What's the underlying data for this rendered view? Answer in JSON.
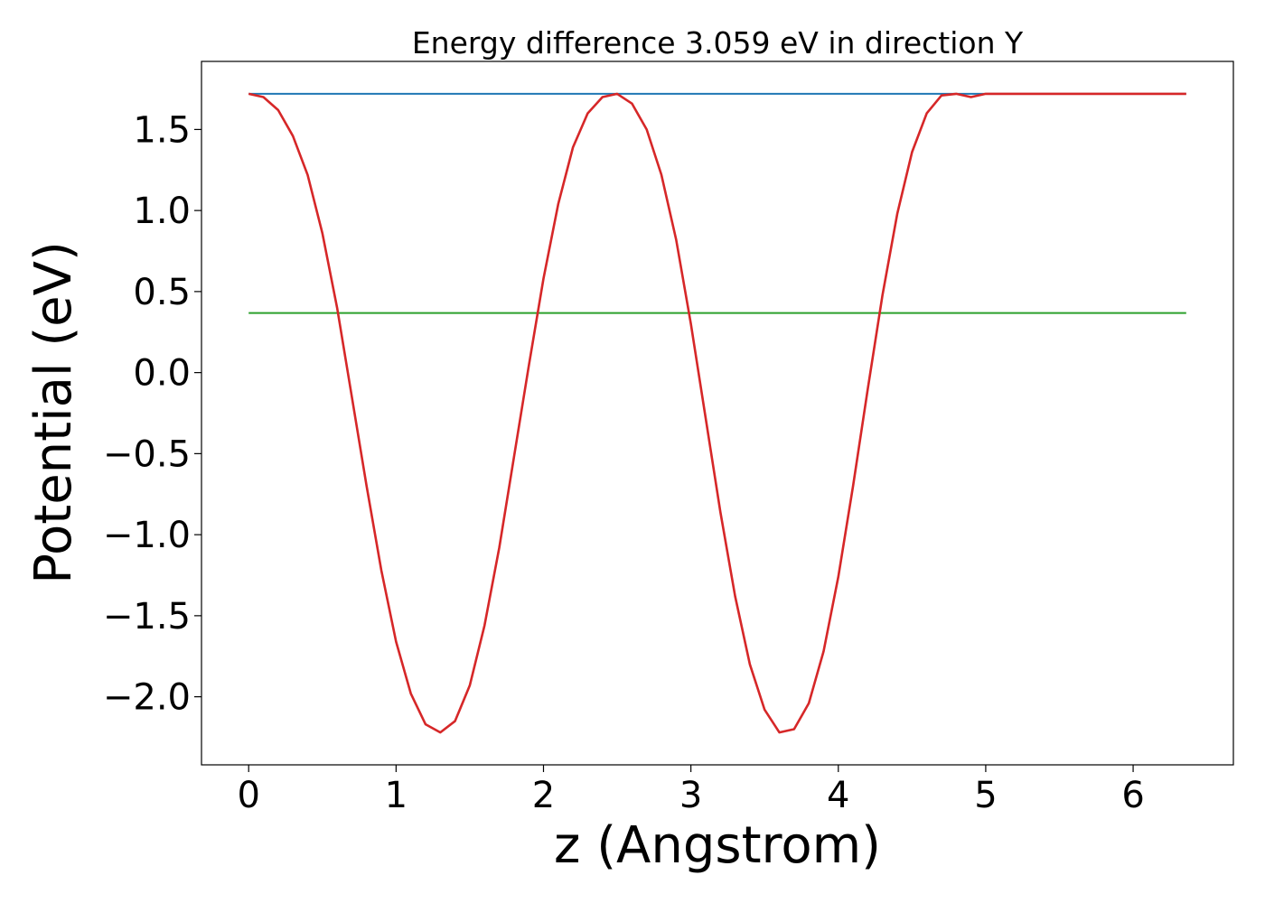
{
  "chart_data": {
    "type": "line",
    "title": "Energy difference 3.059 eV in direction Y",
    "xlabel": "z (Angstrom)",
    "ylabel": "Potential (eV)",
    "xlim": [
      -0.32,
      6.68
    ],
    "ylim": [
      -2.42,
      1.92
    ],
    "xticks": [
      0,
      1,
      2,
      3,
      4,
      5,
      6
    ],
    "yticks": [
      1.5,
      1.0,
      0.5,
      0.0,
      -0.5,
      -1.0,
      -1.5,
      -2.0
    ],
    "xtick_labels": [
      "0",
      "1",
      "2",
      "3",
      "4",
      "5",
      "6"
    ],
    "ytick_labels": [
      "1.5",
      "1.0",
      "0.5",
      "0.0",
      "−0.5",
      "−1.0",
      "−1.5",
      "−2.0"
    ],
    "grid": false,
    "colors": {
      "potential": "#d62728",
      "max_level": "#1f77b4",
      "avg_level": "#2ca02c"
    },
    "series": [
      {
        "values_note": "",
        "x": [
          0.0,
          0.1,
          0.2,
          0.3,
          0.4,
          0.5,
          0.6,
          0.7,
          0.8,
          0.9,
          1.0,
          1.1,
          1.2,
          1.3,
          1.4,
          1.5,
          1.6,
          1.7,
          1.8,
          1.9,
          2.0,
          2.1,
          2.2,
          2.3,
          2.4,
          2.5,
          2.6,
          2.7,
          2.8,
          2.9,
          3.0,
          3.1,
          3.2,
          3.3,
          3.4,
          3.5,
          3.6,
          3.7,
          3.8,
          3.9,
          4.0,
          4.1,
          4.2,
          4.3,
          4.4,
          4.5,
          4.6,
          4.7,
          4.8,
          4.9,
          5.0,
          5.1,
          5.2,
          5.3,
          5.4,
          5.5,
          5.6,
          5.7,
          5.8,
          5.9,
          6.0,
          6.1,
          6.2,
          6.3,
          6.36
        ],
        "y": [
          1.72,
          1.7,
          1.62,
          1.46,
          1.22,
          0.86,
          0.4,
          -0.15,
          -0.7,
          -1.22,
          -1.66,
          -1.98,
          -2.17,
          -2.22,
          -2.15,
          -1.93,
          -1.56,
          -1.08,
          -0.52,
          0.04,
          0.58,
          1.04,
          1.39,
          1.6,
          1.7,
          1.72,
          1.66,
          1.5,
          1.22,
          0.82,
          0.3,
          -0.28,
          -0.86,
          -1.38,
          -1.8,
          -2.08,
          -2.22,
          -2.2,
          -2.04,
          -1.72,
          -1.26,
          -0.7,
          -0.1,
          0.48,
          0.98,
          1.36,
          1.6,
          1.71,
          1.72,
          1.7,
          1.72,
          1.72,
          1.72,
          1.72,
          1.72,
          1.72,
          1.72,
          1.72,
          1.72,
          1.72,
          1.72,
          1.72,
          1.72,
          1.72,
          1.72
        ]
      }
    ]
  }
}
